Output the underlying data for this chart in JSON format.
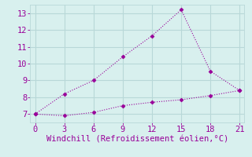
{
  "line1_x": [
    0,
    3,
    6,
    9,
    12,
    15,
    18,
    21
  ],
  "line1_y": [
    7.0,
    8.2,
    9.0,
    10.4,
    11.65,
    13.2,
    9.55,
    8.4
  ],
  "line2_x": [
    0,
    3,
    6,
    9,
    12,
    15,
    18,
    21
  ],
  "line2_y": [
    7.0,
    6.9,
    7.1,
    7.5,
    7.7,
    7.85,
    8.1,
    8.4
  ],
  "line_color": "#990099",
  "bg_color": "#d8f0ee",
  "grid_color": "#b8d8d8",
  "xlabel": "Windchill (Refroidissement éolien,°C)",
  "xticks": [
    0,
    3,
    6,
    9,
    12,
    15,
    18,
    21
  ],
  "yticks": [
    7,
    8,
    9,
    10,
    11,
    12,
    13
  ],
  "xlim": [
    -0.5,
    21.5
  ],
  "ylim": [
    6.5,
    13.5
  ],
  "xlabel_fontsize": 7.5,
  "tick_fontsize": 7.5
}
